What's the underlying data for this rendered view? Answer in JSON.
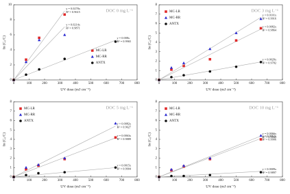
{
  "chart_data": [
    {
      "type": "scatter",
      "subtitle": "DOC 0 mg L⁻¹",
      "xlabel": "UV dose (mJ cm⁻²)",
      "ylabel": "ln (C₀/C)",
      "xlim": [
        0,
        800
      ],
      "xticks": [
        0,
        100,
        200,
        300,
        400,
        500,
        600,
        700,
        800
      ],
      "ylim": [
        0,
        10
      ],
      "yticks": [
        0,
        2,
        4,
        6,
        8,
        10
      ],
      "legend": "center right",
      "series": [
        {
          "name": "MC-LR",
          "color": "#e02828",
          "marker": "square",
          "x": [
            0,
            80,
            165,
            330
          ],
          "values": [
            0,
            2.7,
            5.6,
            8.7
          ],
          "fit": {
            "slope": 0.0278,
            "label": "y = 0.0278x",
            "r2": "R² = 0.9615"
          }
        },
        {
          "name": "MC-RR",
          "color": "#2a2ad0",
          "marker": "triangle",
          "x": [
            0,
            80,
            165,
            330
          ],
          "values": [
            0,
            2.4,
            5.3,
            6.0
          ],
          "fit": {
            "slope": 0.0214,
            "label": "y = 0.0214x",
            "r2": "R² = 0.9871"
          }
        },
        {
          "name": "ANTX",
          "color": "#111111",
          "marker": "circle",
          "x": [
            0,
            80,
            165,
            330,
            660
          ],
          "values": [
            0,
            0.7,
            1.4,
            2.8,
            5.1
          ],
          "fit": {
            "slope": 0.008,
            "label": "y = 0.008x",
            "r2": "R² = 0.9965"
          }
        }
      ]
    },
    {
      "type": "scatter",
      "subtitle": "DOC 3 mg L⁻¹",
      "xlabel": "UV dose (mJ cm⁻²)",
      "ylabel": "ln (C₀/C)",
      "xlim": [
        0,
        800
      ],
      "xticks": [
        0,
        100,
        200,
        300,
        400,
        500,
        600,
        700,
        800
      ],
      "ylim": [
        0,
        8
      ],
      "yticks": [
        0,
        1,
        2,
        3,
        4,
        5,
        6,
        7,
        8
      ],
      "legend": "upper left",
      "series": [
        {
          "name": "MC-LR",
          "color": "#e02828",
          "marker": "square",
          "x": [
            0,
            80,
            160,
            330,
            500,
            660
          ],
          "values": [
            0,
            1.1,
            1.5,
            2.2,
            4.2,
            5.5
          ],
          "fit": {
            "slope": 0.0082,
            "label": "y = 0.0082x",
            "r2": "R² = 0.9864"
          }
        },
        {
          "name": "MC-RR",
          "color": "#2a2ad0",
          "marker": "triangle",
          "x": [
            0,
            80,
            160,
            330,
            500,
            660
          ],
          "values": [
            0,
            1.3,
            1.8,
            3.3,
            5.0,
            6.5
          ],
          "fit": {
            "slope": 0.0101,
            "label": "y = 0.0101x",
            "r2": "R² = 0.9916"
          }
        },
        {
          "name": "ANTX",
          "color": "#111111",
          "marker": "circle",
          "x": [
            0,
            80,
            160,
            330,
            500,
            660
          ],
          "values": [
            0,
            0.3,
            0.5,
            0.9,
            1.4,
            1.9
          ],
          "fit": {
            "slope": 0.0029,
            "label": "y = 0.0029x",
            "r2": "R² = 0.9782"
          }
        }
      ]
    },
    {
      "type": "scatter",
      "subtitle": "DOC 5 mg L⁻¹",
      "xlabel": "UV dose (mJ cm⁻²)",
      "ylabel": "ln (C₀/C)",
      "xlim": [
        0,
        800
      ],
      "xticks": [
        0,
        100,
        200,
        300,
        400,
        500,
        600,
        700,
        800
      ],
      "ylim": [
        0,
        8
      ],
      "yticks": [
        0,
        1,
        2,
        3,
        4,
        5,
        6,
        7,
        8
      ],
      "legend": "upper left",
      "series": [
        {
          "name": "MC-LR",
          "color": "#e02828",
          "marker": "square",
          "x": [
            0,
            80,
            160,
            330,
            660
          ],
          "values": [
            0,
            0.8,
            1.2,
            1.9,
            4.2
          ],
          "fit": {
            "slope": 0.0063,
            "label": "y = 0.0063x",
            "r2": "R² = 0.9889"
          }
        },
        {
          "name": "MC-RR",
          "color": "#2a2ad0",
          "marker": "triangle",
          "x": [
            0,
            80,
            160,
            330,
            660
          ],
          "values": [
            0,
            1.0,
            1.3,
            2.0,
            5.7
          ],
          "fit": {
            "slope": 0.0082,
            "label": "y = 0.0082x",
            "r2": "R² = 0.9627"
          }
        },
        {
          "name": "ANTX",
          "color": "#111111",
          "marker": "circle",
          "x": [
            0,
            80,
            160,
            330,
            660
          ],
          "values": [
            0,
            0.2,
            0.4,
            0.5,
            1.0
          ],
          "fit": {
            "slope": 0.0015,
            "label": "y = 0.0015x",
            "r2": "R² = 0.9904"
          }
        }
      ]
    },
    {
      "type": "scatter",
      "subtitle": "DOC 10 mg L⁻¹",
      "xlabel": "UV dose (mJ cm⁻²)",
      "ylabel": "ln (C₀/C)",
      "xlim": [
        0,
        800
      ],
      "xticks": [
        0,
        100,
        200,
        300,
        400,
        500,
        600,
        700,
        800
      ],
      "ylim": [
        0,
        8
      ],
      "yticks": [
        0,
        1,
        2,
        3,
        4,
        5,
        6,
        7,
        8
      ],
      "legend": "upper left",
      "series": [
        {
          "name": "MC-LR",
          "color": "#e02828",
          "marker": "square",
          "x": [
            0,
            80,
            160,
            330,
            660
          ],
          "values": [
            0,
            0.7,
            1.1,
            1.9,
            4.0
          ],
          "fit": {
            "slope": 0.0062,
            "label": "y = 0.0062x",
            "r2": "R² = 0.9906"
          }
        },
        {
          "name": "MC-RR",
          "color": "#2a2ad0",
          "marker": "triangle",
          "x": [
            0,
            80,
            160,
            330,
            660
          ],
          "values": [
            0,
            0.8,
            1.2,
            2.0,
            4.4
          ],
          "fit": {
            "slope": 0.0066,
            "label": "y = 0.0066x",
            "r2": "R² = 0.9845"
          }
        },
        {
          "name": "ANTX",
          "color": "#111111",
          "marker": "circle",
          "x": [
            0,
            80,
            160,
            330,
            660
          ],
          "values": [
            0,
            0.1,
            0.1,
            0.2,
            0.5
          ],
          "fit": {
            "slope": 0.0009,
            "label": "y = 0.0009x",
            "r2": "R² = 0.9897"
          }
        }
      ]
    }
  ]
}
